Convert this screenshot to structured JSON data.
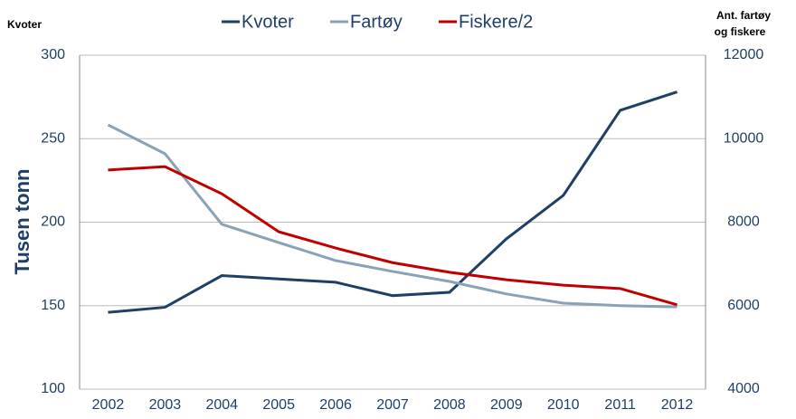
{
  "chart_data": {
    "type": "line",
    "ylabel_top": "Kvoter",
    "ylabel": "Tusen tonn",
    "y2label": [
      "Ant. fartøy",
      "og fiskere"
    ],
    "categories": [
      "2002",
      "2003",
      "2004",
      "2005",
      "2006",
      "2007",
      "2008",
      "2009",
      "2010",
      "2011",
      "2012"
    ],
    "series": [
      {
        "name": "Kvoter",
        "color": "#1f3f66",
        "values": [
          146,
          149,
          168,
          166,
          164,
          156,
          158,
          190,
          216,
          267,
          278
        ]
      },
      {
        "name": "Fartøy",
        "color": "#8aa2b5",
        "axis": "y2",
        "values": [
          10330,
          9640,
          7950,
          7510,
          7080,
          6820,
          6580,
          6280,
          6060,
          6000,
          5970
        ]
      },
      {
        "name": "Fiskere/2",
        "color": "#c00000",
        "axis": "y2",
        "values": [
          9250,
          9330,
          8680,
          7770,
          7380,
          7030,
          6800,
          6620,
          6490,
          6410,
          6020
        ]
      }
    ],
    "ylim": [
      100,
      300
    ],
    "yticks": [
      100,
      150,
      200,
      250,
      300
    ],
    "y2lim": [
      4000,
      12000
    ],
    "y2ticks": [
      4000,
      6000,
      8000,
      10000,
      12000
    ],
    "grid": true
  }
}
